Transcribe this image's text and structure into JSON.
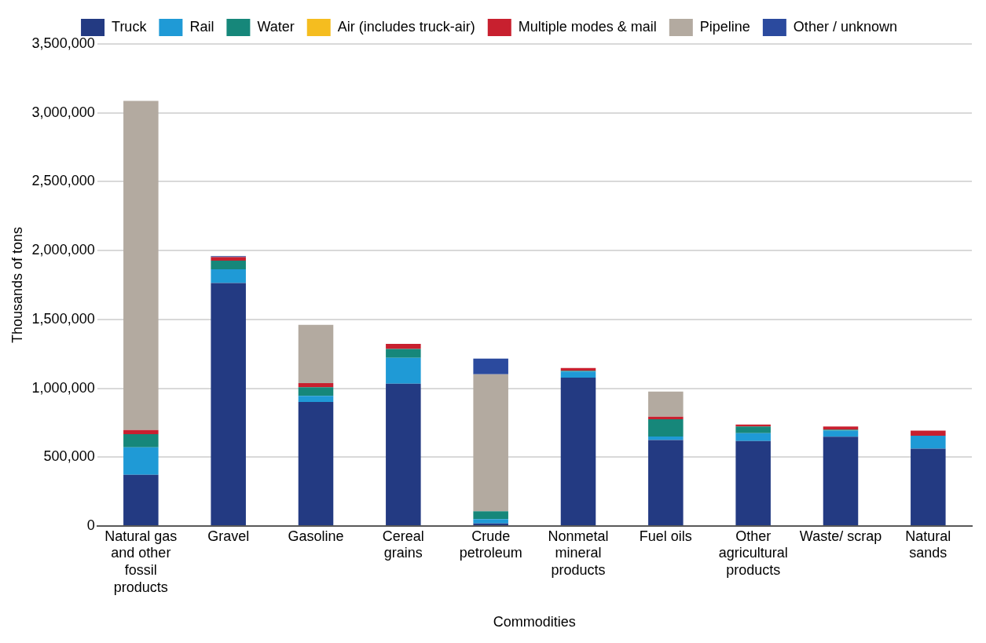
{
  "chart_data": {
    "type": "bar",
    "stacked": true,
    "xlabel": "Commodities",
    "ylabel": "Thousands of tons",
    "legend": "top",
    "grid": "y",
    "categories": [
      "Natural gas and other fossil products",
      "Gravel",
      "Gasoline",
      "Cereal grains",
      "Crude petroleum",
      "Nonmetal mineral products",
      "Fuel oils",
      "Other agricultural products",
      "Waste/ scrap",
      "Natural sands"
    ],
    "ylim": [
      0,
      3500000
    ],
    "yticks": [
      0,
      {
        "value": 500000,
        "label": "500,000"
      },
      {
        "value": 1000000,
        "label": "1,000,000"
      },
      {
        "value": 1500000,
        "label": "1,500,000"
      },
      {
        "value": 2000000,
        "label": "2,000,000"
      },
      {
        "value": 2500000,
        "label": "2,500,000"
      },
      {
        "value": 3000000,
        "label": "3,000,000"
      },
      {
        "value": 3500000,
        "label": "3,500,000"
      }
    ],
    "series": [
      {
        "name": "Truck",
        "color": "#233a82",
        "values": [
          372000,
          1764000,
          900000,
          1033000,
          19000,
          1077000,
          624000,
          617000,
          649000,
          561000
        ]
      },
      {
        "name": "Rail",
        "color": "#1f9ad6",
        "values": [
          200000,
          100000,
          45000,
          189000,
          31000,
          45000,
          26000,
          57000,
          44000,
          94000
        ]
      },
      {
        "name": "Water",
        "color": "#16877a",
        "values": [
          95000,
          63000,
          63000,
          63000,
          57000,
          5000,
          125000,
          48000,
          7000,
          0
        ]
      },
      {
        "name": "Air (includes truck-air)",
        "color": "#f5bd1f",
        "values": [
          0,
          0,
          0,
          0,
          0,
          0,
          0,
          0,
          0,
          0
        ]
      },
      {
        "name": "Multiple modes & mail",
        "color": "#c8202f",
        "values": [
          30000,
          25000,
          30000,
          38000,
          0,
          20000,
          19000,
          15000,
          22000,
          38000
        ]
      },
      {
        "name": "Pipeline",
        "color": "#b3aaa0",
        "values": [
          2390000,
          0,
          422000,
          0,
          995000,
          0,
          182000,
          0,
          0,
          0
        ]
      },
      {
        "name": "Other / unknown",
        "color": "#2b4a9e",
        "values": [
          0,
          7000,
          0,
          0,
          114000,
          0,
          0,
          0,
          0,
          0
        ]
      }
    ]
  }
}
